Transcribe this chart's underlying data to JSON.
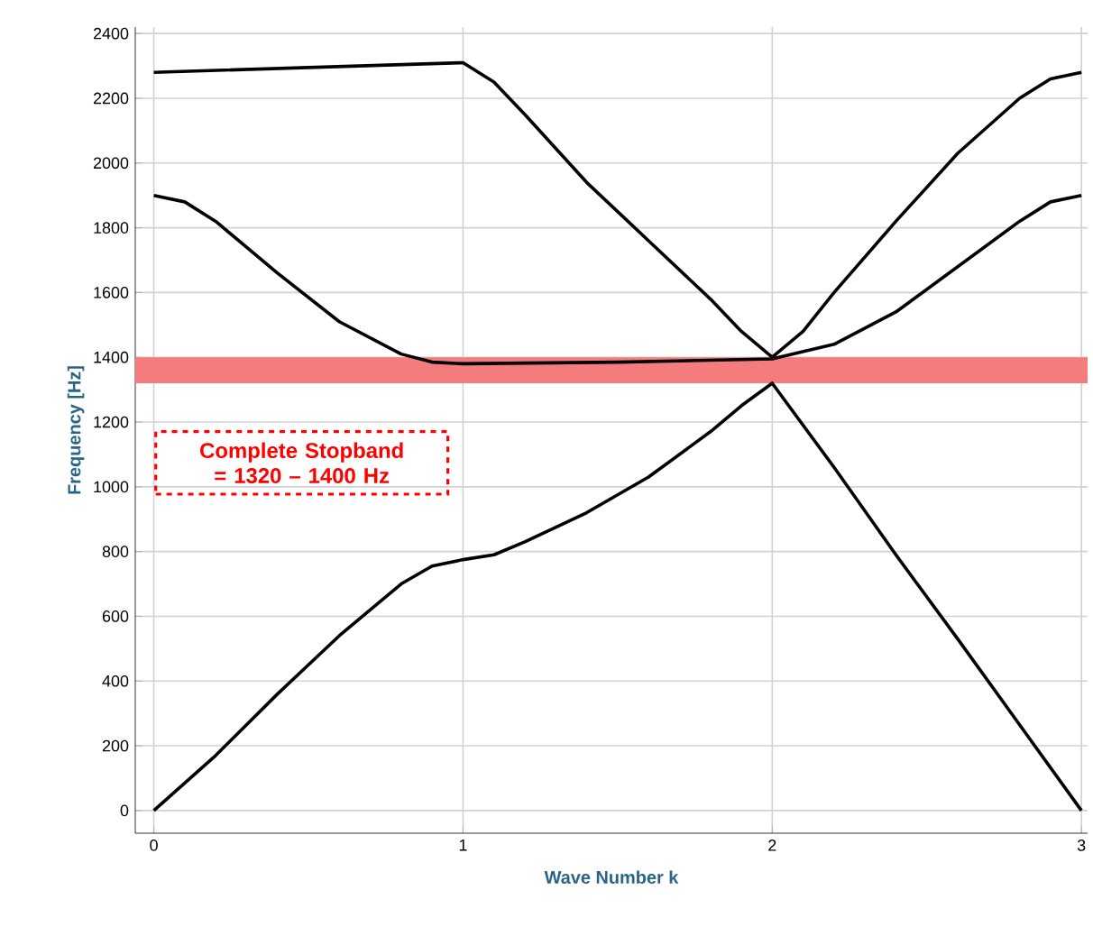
{
  "chart_data": {
    "type": "line",
    "xlabel": "Wave Number k",
    "ylabel": "Frequency [Hz]",
    "xlim": [
      -0.06,
      3.02
    ],
    "ylim": [
      -70,
      2420
    ],
    "xticks": [
      0,
      1,
      2,
      3
    ],
    "yticks": [
      0,
      200,
      400,
      600,
      800,
      1000,
      1200,
      1400,
      1600,
      1800,
      2000,
      2200,
      2400
    ],
    "grid": true,
    "marker": "none",
    "line_style": "solid",
    "series": [
      {
        "color": "#000000",
        "x": [
          0,
          0.2,
          0.4,
          0.6,
          0.8,
          0.9,
          1,
          1.1,
          1.2,
          1.4,
          1.6,
          1.8,
          1.9,
          2,
          2.2,
          2.4,
          2.6,
          2.8,
          3
        ],
        "values": [
          0,
          170,
          360,
          540,
          700,
          755,
          775,
          790,
          830,
          920,
          1030,
          1170,
          1250,
          1320,
          1060,
          790,
          530,
          265,
          0
        ]
      },
      {
        "color": "#000000",
        "x": [
          0,
          0.1,
          0.2,
          0.4,
          0.6,
          0.8,
          0.9,
          1,
          1.5,
          2,
          2.2,
          2.4,
          2.6,
          2.8,
          2.9,
          3
        ],
        "values": [
          1900,
          1880,
          1820,
          1660,
          1510,
          1410,
          1385,
          1380,
          1385,
          1395,
          1440,
          1540,
          1680,
          1820,
          1880,
          1900
        ]
      },
      {
        "color": "#000000",
        "x": [
          0,
          1,
          1.1,
          1.2,
          1.4,
          1.6,
          1.8,
          1.9,
          2,
          2.1,
          2.2,
          2.4,
          2.6,
          2.8,
          2.9,
          3
        ],
        "values": [
          2280,
          2310,
          2250,
          2150,
          1940,
          1760,
          1580,
          1480,
          1400,
          1480,
          1600,
          1820,
          2030,
          2200,
          2260,
          2280
        ]
      }
    ],
    "bands": [
      {
        "axis": "y",
        "from": 1320,
        "to": 1400,
        "label": "Complete Stopband = 1320 – 1400 Hz",
        "color": "#f47c7c"
      }
    ]
  }
}
